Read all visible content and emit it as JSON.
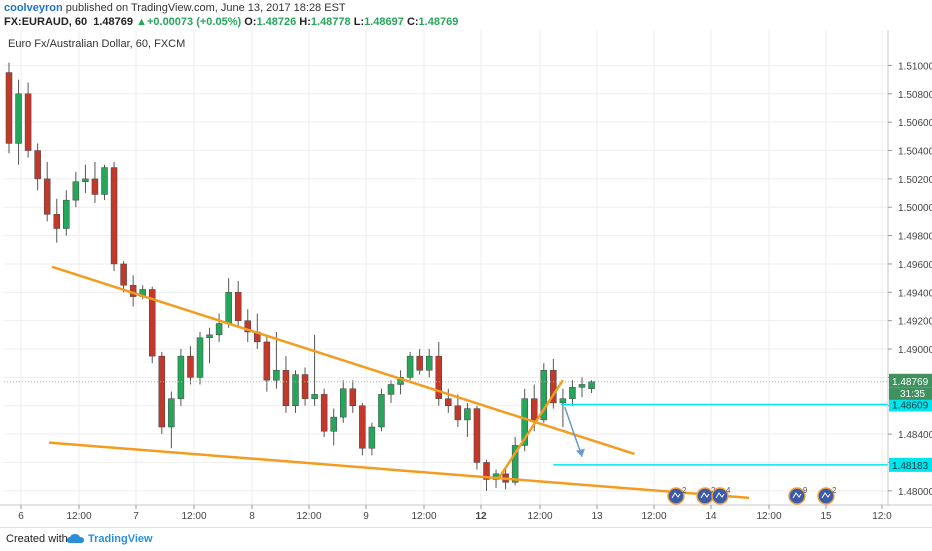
{
  "header": {
    "user": "coolveyron",
    "published_text": "published on TradingView.com, June 13, 2017 18:28 EST",
    "symbol": "FX:EURAUD, 60",
    "last": "1.48769",
    "change": "+0.00073 (+0.05%)",
    "o_label": "O:",
    "o": "1.48726",
    "h_label": "H:",
    "h": "1.48778",
    "l_label": "L:",
    "l": "1.48697",
    "c_label": "C:",
    "c": "1.48769"
  },
  "colors": {
    "up": "#26a65b",
    "down": "#c0392b",
    "trendline": "#f39c1f",
    "target": "#00e5ee",
    "arrow": "#6a9ac9",
    "price_tag": "#3f9160",
    "grid": "#eeeeee"
  },
  "chart_data": {
    "type": "candlestick",
    "title": "Euro Fx/Australian Dollar, 60, FXCM",
    "y_ticks": [
      "1.51000",
      "1.50800",
      "1.50600",
      "1.50400",
      "1.50200",
      "1.50000",
      "1.49800",
      "1.49600",
      "1.49400",
      "1.49200",
      "1.49000",
      "1.48800",
      "1.48600",
      "1.48400",
      "1.48200",
      "1.48000"
    ],
    "x_ticks": [
      "6",
      "12:00",
      "7",
      "12:00",
      "8",
      "12:00",
      "9",
      "12:00",
      "12",
      "12:00",
      "13",
      "12:00",
      "14",
      "12:00",
      "15",
      "12:0"
    ],
    "ylim": [
      1.479,
      1.5125
    ],
    "current_price": "1.48769",
    "countdown": "31:35",
    "target_labels": [
      "1.48609",
      "1.48183"
    ],
    "trendlines": [
      {
        "name": "upper",
        "from": [
          4.5,
          1.4958
        ],
        "to": [
          65.5,
          1.4826
        ]
      },
      {
        "name": "lower",
        "from": [
          4.2,
          1.4834
        ],
        "to": [
          77.5,
          1.4795
        ]
      },
      {
        "name": "rising",
        "from": [
          51.2,
          1.4808
        ],
        "to": [
          58.0,
          1.4878
        ]
      }
    ],
    "targets": [
      {
        "price": 1.48609,
        "from": 57.8,
        "to": 77.5
      },
      {
        "price": 1.48183,
        "from": 57.0,
        "to": 77.5
      }
    ],
    "event_icons": [
      "2",
      "2",
      "4",
      "9",
      "2"
    ],
    "candles": [
      {
        "o": 1.5095,
        "h": 1.5102,
        "l": 1.5038,
        "c": 1.5045
      },
      {
        "o": 1.5045,
        "h": 1.509,
        "l": 1.503,
        "c": 1.508
      },
      {
        "o": 1.508,
        "h": 1.5088,
        "l": 1.5035,
        "c": 1.504
      },
      {
        "o": 1.504,
        "h": 1.5045,
        "l": 1.5012,
        "c": 1.502
      },
      {
        "o": 1.502,
        "h": 1.5032,
        "l": 1.499,
        "c": 1.4995
      },
      {
        "o": 1.4995,
        "h": 1.5006,
        "l": 1.4975,
        "c": 1.4985
      },
      {
        "o": 1.4985,
        "h": 1.5012,
        "l": 1.498,
        "c": 1.5005
      },
      {
        "o": 1.5005,
        "h": 1.5025,
        "l": 1.5,
        "c": 1.5018
      },
      {
        "o": 1.5018,
        "h": 1.503,
        "l": 1.501,
        "c": 1.502
      },
      {
        "o": 1.502,
        "h": 1.5032,
        "l": 1.5003,
        "c": 1.5009
      },
      {
        "o": 1.5009,
        "h": 1.503,
        "l": 1.5005,
        "c": 1.5028
      },
      {
        "o": 1.5028,
        "h": 1.5032,
        "l": 1.4955,
        "c": 1.496
      },
      {
        "o": 1.496,
        "h": 1.4962,
        "l": 1.494,
        "c": 1.4945
      },
      {
        "o": 1.4945,
        "h": 1.4952,
        "l": 1.493,
        "c": 1.4937
      },
      {
        "o": 1.4937,
        "h": 1.4945,
        "l": 1.4935,
        "c": 1.4942
      },
      {
        "o": 1.4942,
        "h": 1.4944,
        "l": 1.489,
        "c": 1.4895
      },
      {
        "o": 1.4895,
        "h": 1.4898,
        "l": 1.484,
        "c": 1.4845
      },
      {
        "o": 1.4845,
        "h": 1.487,
        "l": 1.483,
        "c": 1.4865
      },
      {
        "o": 1.4865,
        "h": 1.49,
        "l": 1.486,
        "c": 1.4895
      },
      {
        "o": 1.4895,
        "h": 1.4902,
        "l": 1.4875,
        "c": 1.488
      },
      {
        "o": 1.488,
        "h": 1.4912,
        "l": 1.4875,
        "c": 1.4908
      },
      {
        "o": 1.4908,
        "h": 1.4915,
        "l": 1.489,
        "c": 1.491
      },
      {
        "o": 1.491,
        "h": 1.4925,
        "l": 1.4905,
        "c": 1.4918
      },
      {
        "o": 1.4918,
        "h": 1.495,
        "l": 1.4915,
        "c": 1.494
      },
      {
        "o": 1.494,
        "h": 1.4948,
        "l": 1.4915,
        "c": 1.492
      },
      {
        "o": 1.492,
        "h": 1.4928,
        "l": 1.4905,
        "c": 1.4912
      },
      {
        "o": 1.4912,
        "h": 1.4925,
        "l": 1.49,
        "c": 1.4905
      },
      {
        "o": 1.4905,
        "h": 1.491,
        "l": 1.487,
        "c": 1.4878
      },
      {
        "o": 1.4878,
        "h": 1.4912,
        "l": 1.4872,
        "c": 1.4885
      },
      {
        "o": 1.4885,
        "h": 1.4895,
        "l": 1.4855,
        "c": 1.486
      },
      {
        "o": 1.486,
        "h": 1.4885,
        "l": 1.4855,
        "c": 1.4882
      },
      {
        "o": 1.4882,
        "h": 1.4887,
        "l": 1.486,
        "c": 1.4865
      },
      {
        "o": 1.4865,
        "h": 1.491,
        "l": 1.486,
        "c": 1.4868
      },
      {
        "o": 1.4868,
        "h": 1.4872,
        "l": 1.4838,
        "c": 1.4842
      },
      {
        "o": 1.4842,
        "h": 1.4858,
        "l": 1.4832,
        "c": 1.4852
      },
      {
        "o": 1.4852,
        "h": 1.4878,
        "l": 1.4848,
        "c": 1.4872
      },
      {
        "o": 1.4872,
        "h": 1.4878,
        "l": 1.4855,
        "c": 1.486
      },
      {
        "o": 1.486,
        "h": 1.4862,
        "l": 1.4825,
        "c": 1.483
      },
      {
        "o": 1.483,
        "h": 1.4848,
        "l": 1.4825,
        "c": 1.4845
      },
      {
        "o": 1.4845,
        "h": 1.4872,
        "l": 1.4842,
        "c": 1.4868
      },
      {
        "o": 1.4868,
        "h": 1.4878,
        "l": 1.4862,
        "c": 1.4875
      },
      {
        "o": 1.4875,
        "h": 1.4885,
        "l": 1.4868,
        "c": 1.488
      },
      {
        "o": 1.488,
        "h": 1.4898,
        "l": 1.4878,
        "c": 1.4895
      },
      {
        "o": 1.4895,
        "h": 1.49,
        "l": 1.4882,
        "c": 1.4885
      },
      {
        "o": 1.4885,
        "h": 1.49,
        "l": 1.488,
        "c": 1.4895
      },
      {
        "o": 1.4895,
        "h": 1.4905,
        "l": 1.486,
        "c": 1.4865
      },
      {
        "o": 1.4865,
        "h": 1.4872,
        "l": 1.4855,
        "c": 1.486
      },
      {
        "o": 1.486,
        "h": 1.4868,
        "l": 1.4845,
        "c": 1.485
      },
      {
        "o": 1.485,
        "h": 1.4862,
        "l": 1.4838,
        "c": 1.4858
      },
      {
        "o": 1.4858,
        "h": 1.486,
        "l": 1.4815,
        "c": 1.482
      },
      {
        "o": 1.482,
        "h": 1.4822,
        "l": 1.48,
        "c": 1.4808
      },
      {
        "o": 1.4808,
        "h": 1.4815,
        "l": 1.4802,
        "c": 1.4812
      },
      {
        "o": 1.4812,
        "h": 1.4816,
        "l": 1.4801,
        "c": 1.4806
      },
      {
        "o": 1.4806,
        "h": 1.4838,
        "l": 1.4804,
        "c": 1.4832
      },
      {
        "o": 1.4832,
        "h": 1.4872,
        "l": 1.4828,
        "c": 1.4865
      },
      {
        "o": 1.4865,
        "h": 1.4875,
        "l": 1.4842,
        "c": 1.485
      },
      {
        "o": 1.485,
        "h": 1.489,
        "l": 1.4848,
        "c": 1.4885
      },
      {
        "o": 1.4885,
        "h": 1.4893,
        "l": 1.4858,
        "c": 1.4862
      },
      {
        "o": 1.4862,
        "h": 1.4872,
        "l": 1.4845,
        "c": 1.4865
      },
      {
        "o": 1.4865,
        "h": 1.4878,
        "l": 1.486,
        "c": 1.4873
      },
      {
        "o": 1.4873,
        "h": 1.488,
        "l": 1.4866,
        "c": 1.4875
      },
      {
        "o": 1.4872,
        "h": 1.4878,
        "l": 1.4869,
        "c": 1.4877
      }
    ]
  },
  "footer": {
    "created_with": "Created with",
    "brand": "TradingView"
  }
}
